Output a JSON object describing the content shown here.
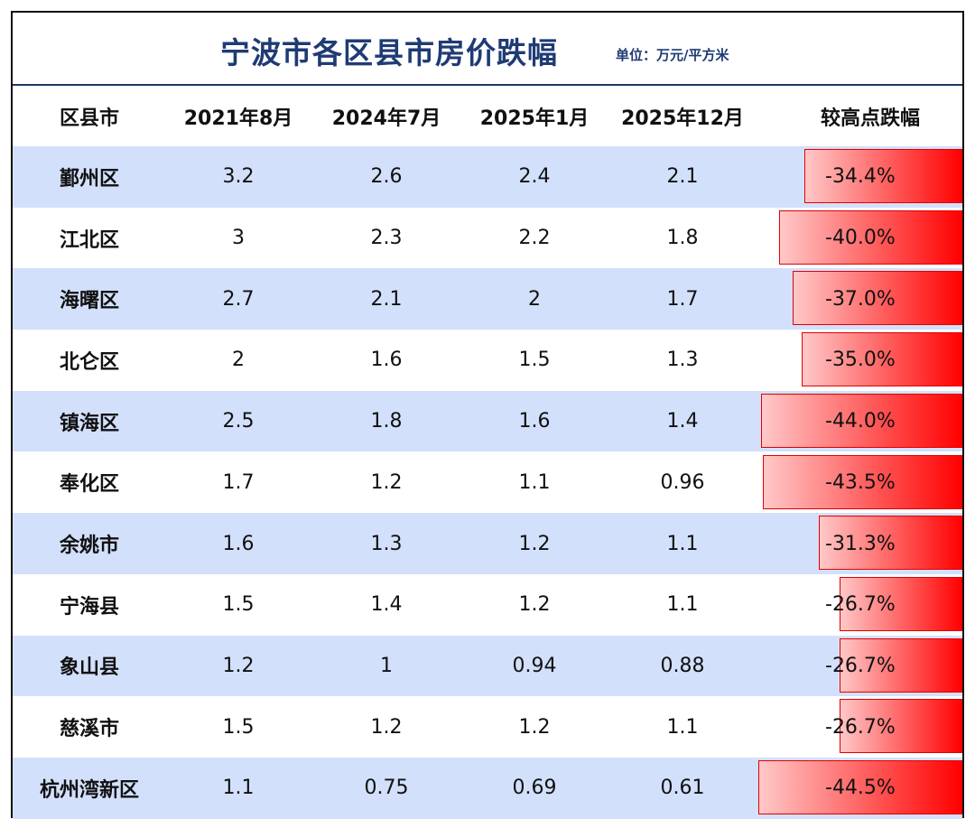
{
  "title": "宁波市各区县市房价跌幅",
  "unit": "单位：万元/平方米",
  "headers": [
    "区县市",
    "2021年8月",
    "2024年7月",
    "2025年1月",
    "2025年12月",
    "较高点跌幅"
  ],
  "rows": [
    {
      "name": "鄞州区",
      "v1": "3.2",
      "v2": "2.6",
      "v3": "2.4",
      "v4": "2.1",
      "drop": "-34.4%"
    },
    {
      "name": "江北区",
      "v1": "3",
      "v2": "2.3",
      "v3": "2.2",
      "v4": "1.8",
      "drop": "-40.0%"
    },
    {
      "name": "海曙区",
      "v1": "2.7",
      "v2": "2.1",
      "v3": "2",
      "v4": "1.7",
      "drop": "-37.0%"
    },
    {
      "name": "北仑区",
      "v1": "2",
      "v2": "1.6",
      "v3": "1.5",
      "v4": "1.3",
      "drop": "-35.0%"
    },
    {
      "name": "镇海区",
      "v1": "2.5",
      "v2": "1.8",
      "v3": "1.6",
      "v4": "1.4",
      "drop": "-44.0%"
    },
    {
      "name": "奉化区",
      "v1": "1.7",
      "v2": "1.2",
      "v3": "1.1",
      "v4": "0.96",
      "drop": "-43.5%"
    },
    {
      "name": "余姚市",
      "v1": "1.6",
      "v2": "1.3",
      "v3": "1.2",
      "v4": "1.1",
      "drop": "-31.3%"
    },
    {
      "name": "宁海县",
      "v1": "1.5",
      "v2": "1.4",
      "v3": "1.2",
      "v4": "1.1",
      "drop": "-26.7%"
    },
    {
      "name": "象山县",
      "v1": "1.2",
      "v2": "1",
      "v3": "0.94",
      "v4": "0.88",
      "drop": "-26.7%"
    },
    {
      "name": "慈溪市",
      "v1": "1.5",
      "v2": "1.2",
      "v3": "1.2",
      "v4": "1.1",
      "drop": "-26.7%"
    },
    {
      "name": "杭州湾新区",
      "v1": "1.1",
      "v2": "0.75",
      "v3": "0.69",
      "v4": "0.61",
      "drop": "-44.5%"
    }
  ],
  "colors": {
    "title": "#1f3b73",
    "alt_row": "#d2e0fb",
    "bar_start": "#ffc8c8",
    "bar_end": "#ff0000"
  },
  "chart_data": {
    "type": "table",
    "title": "宁波市各区县市房价跌幅",
    "subtitle": "单位：万元/平方米",
    "columns": [
      "区县市",
      "2021年8月",
      "2024年7月",
      "2025年1月",
      "2025年12月",
      "较高点跌幅"
    ],
    "categories": [
      "鄞州区",
      "江北区",
      "海曙区",
      "北仑区",
      "镇海区",
      "奉化区",
      "余姚市",
      "宁海县",
      "象山县",
      "慈溪市",
      "杭州湾新区"
    ],
    "series": [
      {
        "name": "2021年8月",
        "values": [
          3.2,
          3,
          2.7,
          2,
          2.5,
          1.7,
          1.6,
          1.5,
          1.2,
          1.5,
          1.1
        ]
      },
      {
        "name": "2024年7月",
        "values": [
          2.6,
          2.3,
          2.1,
          1.6,
          1.8,
          1.2,
          1.3,
          1.4,
          1,
          1.2,
          0.75
        ]
      },
      {
        "name": "2025年1月",
        "values": [
          2.4,
          2.2,
          2,
          1.5,
          1.6,
          1.1,
          1.2,
          1.2,
          0.94,
          1.2,
          0.69
        ]
      },
      {
        "name": "2025年12月",
        "values": [
          2.1,
          1.8,
          1.7,
          1.3,
          1.4,
          0.96,
          1.1,
          1.1,
          0.88,
          1.1,
          0.61
        ]
      },
      {
        "name": "较高点跌幅(%)",
        "values": [
          -34.4,
          -40.0,
          -37.0,
          -35.0,
          -44.0,
          -43.5,
          -31.3,
          -26.7,
          -26.7,
          -26.7,
          -44.5
        ]
      }
    ]
  }
}
